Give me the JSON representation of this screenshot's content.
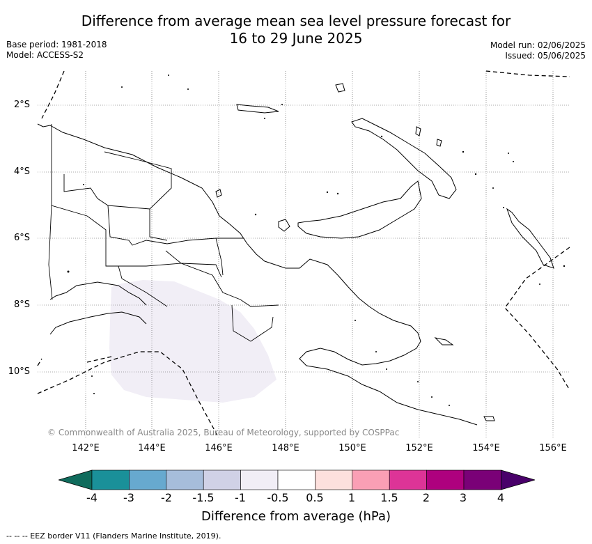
{
  "title_line1": "Difference from average mean sea level pressure forecast for",
  "title_line2": "16 to 29 June 2025",
  "base_period": "Base period: 1981-2018",
  "model": "Model: ACCESS-S2",
  "model_run": "Model run: 02/06/2025",
  "issued": "Issued: 05/06/2025",
  "copyright": "© Commonwealth of Australia 2025, Bureau of Meteorology, supported by COSPPac",
  "lat_labels": [
    "2°S",
    "4°S",
    "6°S",
    "8°S",
    "10°S"
  ],
  "lon_labels": [
    "142°E",
    "144°E",
    "146°E",
    "148°E",
    "150°E",
    "152°E",
    "154°E",
    "156°E"
  ],
  "colorbar": {
    "title": "Difference from average (hPa)",
    "ticks": [
      "-4",
      "-3",
      "-2",
      "-1.5",
      "-1",
      "-0.5",
      "0.5",
      "1",
      "1.5",
      "2",
      "3",
      "4"
    ],
    "colors": [
      "#0f6b5c",
      "#1a9099",
      "#67a9cf",
      "#a6bddb",
      "#d0d1e6",
      "#f1eef6",
      "#ffffff",
      "#fde0dd",
      "#fa9fb5",
      "#dd3497",
      "#ae017e",
      "#7a0177",
      "#49006a"
    ]
  },
  "anomaly_region": {
    "value_range": "-1 to -0.5",
    "fill_color": "#f1eef6"
  },
  "legend_footnote": "--  --  -- EEZ border V11 (Flanders Marine Institute, 2019)."
}
